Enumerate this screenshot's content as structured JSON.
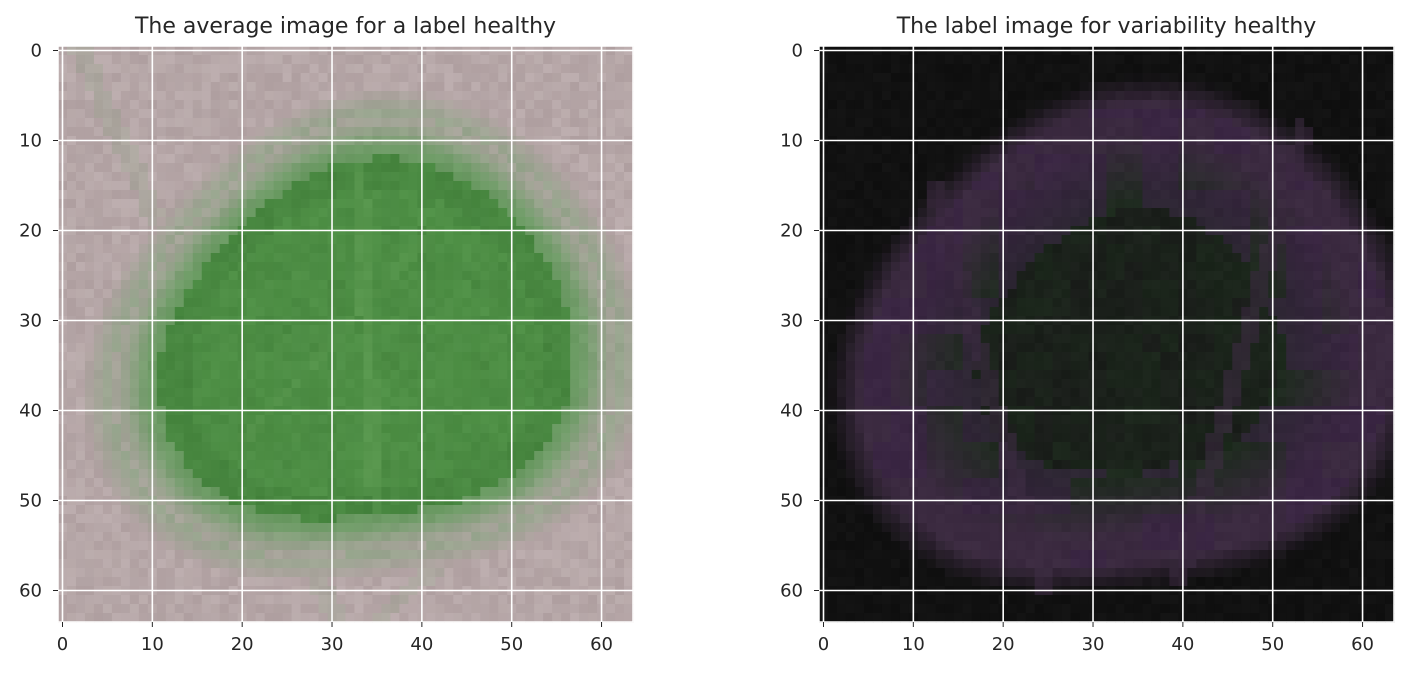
{
  "chart_data": [
    {
      "type": "image",
      "title": "The average image for a label healthy",
      "image_size": [
        64,
        64
      ],
      "grid": true,
      "x_ticks": [
        0,
        10,
        20,
        30,
        40,
        50,
        60
      ],
      "y_ticks": [
        0,
        10,
        20,
        30,
        40,
        50,
        60
      ],
      "xlim": [
        -0.5,
        63.5
      ],
      "ylim": [
        63.5,
        -0.5
      ],
      "colors": {
        "background": "#b3a3a4",
        "background_light": "#bfb2b2",
        "leaf": "#4f9046",
        "leaf_dark": "#427f3b",
        "leaf_rim": "#8ea686",
        "vein": "#5c9a51"
      },
      "pixel_art": "average-leaf"
    },
    {
      "type": "image",
      "title": "The label image for variability healthy",
      "image_size": [
        64,
        64
      ],
      "grid": true,
      "x_ticks": [
        0,
        10,
        20,
        30,
        40,
        50,
        60
      ],
      "y_ticks": [
        0,
        10,
        20,
        30,
        40,
        50,
        60
      ],
      "xlim": [
        -0.5,
        63.5
      ],
      "ylim": [
        63.5,
        -0.5
      ],
      "colors": {
        "background": "#111111",
        "ring": "#3b2a40",
        "ring_purple": "#3a2245",
        "inner": "#1a1d1a",
        "inner_green": "#1c2a1c"
      },
      "pixel_art": "variability-leaf"
    }
  ]
}
